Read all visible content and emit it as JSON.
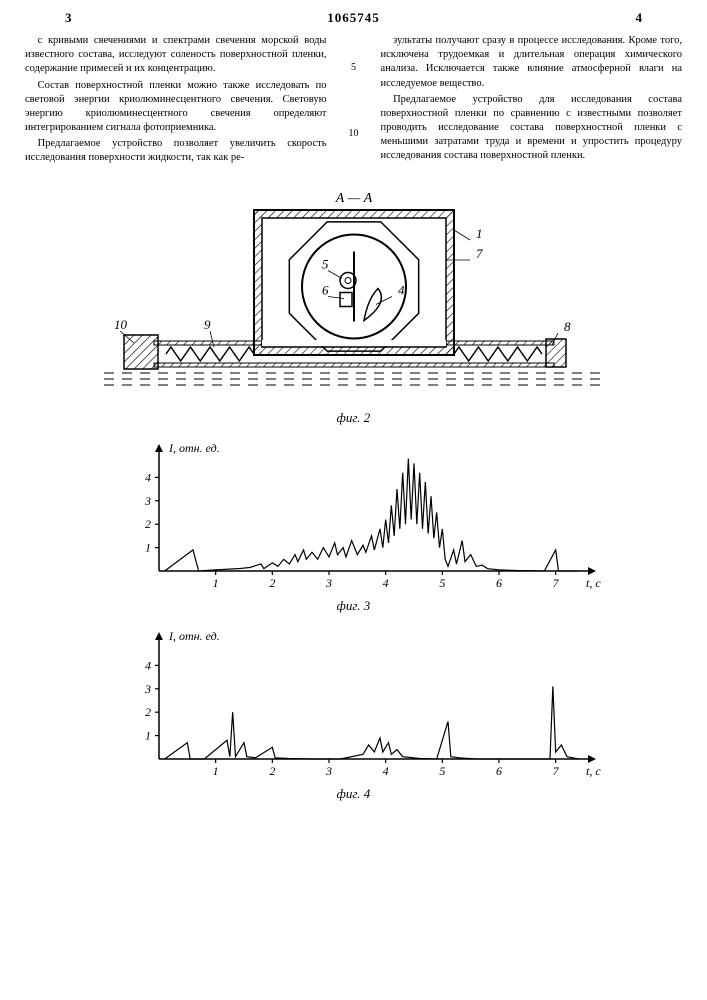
{
  "header": {
    "left_page": "3",
    "doc_number": "1065745",
    "right_page": "4"
  },
  "line_markers": {
    "a": "5",
    "b": "10"
  },
  "left_col": {
    "p1": "с кривыми свечениями и спектрами свечения морской воды известного состава, исследуют соленость поверхностной пленки, содержание примесей и их концентрацию.",
    "p2": "Состав поверхностной пленки можно также исследовать по световой энергии криолюминесцентного свечения. Световую энергию криолюминесцентного свечения определяют интегрированием сигнала фотоприемника.",
    "p3": "Предлагаемое устройство позволяет увеличить скорость исследования поверхности жидкости, так как ре-"
  },
  "right_col": {
    "p1": "зультаты получают сразу в процессе исследования. Кроме того, исключена трудоемкая и длительная операция химического анализа. Исключается также влияние атмосферной влаги на исследуемое вещество.",
    "p2": "Предлагаемое устройство для исследования состава поверхностной пленки по сравнению с известными позволяет проводить исследование состава поверхностной пленки с меньшими затратами труда и времени и упростить процедуру исследования состава поверхностной пленки."
  },
  "fig2": {
    "section_label": "А — А",
    "caption": "фиг. 2",
    "callouts": {
      "c1": "1",
      "c4": "4",
      "c5": "5",
      "c6": "6",
      "c7": "7",
      "c8": "8",
      "c9": "9",
      "c10": "10"
    },
    "colors": {
      "stroke": "#000000",
      "bg": "#ffffff",
      "hatch": "#000000"
    }
  },
  "fig3": {
    "caption": "фиг. 3",
    "ylabel": "I, отн. ед.",
    "xlabel": "t, c",
    "xlim": [
      0,
      7.5
    ],
    "ylim": [
      0,
      5
    ],
    "yticks": [
      1,
      2,
      3,
      4
    ],
    "xticks": [
      1,
      2,
      3,
      4,
      5,
      6,
      7
    ],
    "axis_color": "#000000",
    "line_color": "#000000",
    "points": [
      [
        0.1,
        0
      ],
      [
        0.6,
        0.9
      ],
      [
        0.7,
        0
      ],
      [
        1.0,
        0.05
      ],
      [
        1.4,
        0.1
      ],
      [
        1.6,
        0.15
      ],
      [
        1.8,
        0.3
      ],
      [
        1.85,
        0.1
      ],
      [
        2.0,
        0.35
      ],
      [
        2.1,
        0.2
      ],
      [
        2.2,
        0.5
      ],
      [
        2.3,
        0.3
      ],
      [
        2.4,
        0.7
      ],
      [
        2.45,
        0.4
      ],
      [
        2.55,
        0.9
      ],
      [
        2.6,
        0.5
      ],
      [
        2.7,
        0.8
      ],
      [
        2.8,
        0.5
      ],
      [
        2.9,
        1.0
      ],
      [
        3.0,
        0.6
      ],
      [
        3.1,
        1.2
      ],
      [
        3.15,
        0.7
      ],
      [
        3.25,
        1.0
      ],
      [
        3.3,
        0.6
      ],
      [
        3.4,
        1.3
      ],
      [
        3.5,
        0.7
      ],
      [
        3.6,
        1.1
      ],
      [
        3.65,
        0.8
      ],
      [
        3.75,
        1.5
      ],
      [
        3.8,
        0.9
      ],
      [
        3.9,
        1.8
      ],
      [
        3.95,
        1.0
      ],
      [
        4.0,
        2.2
      ],
      [
        4.05,
        1.2
      ],
      [
        4.1,
        2.8
      ],
      [
        4.15,
        1.5
      ],
      [
        4.2,
        3.5
      ],
      [
        4.25,
        1.8
      ],
      [
        4.3,
        4.2
      ],
      [
        4.35,
        2.0
      ],
      [
        4.4,
        4.8
      ],
      [
        4.45,
        2.2
      ],
      [
        4.5,
        4.6
      ],
      [
        4.55,
        2.0
      ],
      [
        4.6,
        4.2
      ],
      [
        4.65,
        1.8
      ],
      [
        4.7,
        3.8
      ],
      [
        4.75,
        1.6
      ],
      [
        4.8,
        3.2
      ],
      [
        4.85,
        1.4
      ],
      [
        4.9,
        2.5
      ],
      [
        4.95,
        1.0
      ],
      [
        5.0,
        1.8
      ],
      [
        5.05,
        0.5
      ],
      [
        5.1,
        0.2
      ],
      [
        5.2,
        0.9
      ],
      [
        5.25,
        0.3
      ],
      [
        5.35,
        1.3
      ],
      [
        5.4,
        0.4
      ],
      [
        5.5,
        0.7
      ],
      [
        5.6,
        0.2
      ],
      [
        5.7,
        0.25
      ],
      [
        5.8,
        0.1
      ],
      [
        6.0,
        0.05
      ],
      [
        6.3,
        0.02
      ],
      [
        6.6,
        0.01
      ],
      [
        6.8,
        0.0
      ],
      [
        7.0,
        0.9
      ],
      [
        7.05,
        0.0
      ],
      [
        7.4,
        0.0
      ]
    ]
  },
  "fig4": {
    "caption": "фиг. 4",
    "ylabel": "I, отн. ед.",
    "xlabel": "t, c",
    "xlim": [
      0,
      7.5
    ],
    "ylim": [
      0,
      5
    ],
    "yticks": [
      1,
      2,
      3,
      4
    ],
    "xticks": [
      1,
      2,
      3,
      4,
      5,
      6,
      7
    ],
    "axis_color": "#000000",
    "line_color": "#000000",
    "points": [
      [
        0.1,
        0
      ],
      [
        0.5,
        0.7
      ],
      [
        0.55,
        0
      ],
      [
        0.8,
        0
      ],
      [
        1.2,
        0.8
      ],
      [
        1.25,
        0.1
      ],
      [
        1.3,
        2.0
      ],
      [
        1.35,
        0.1
      ],
      [
        1.5,
        0.7
      ],
      [
        1.55,
        0.1
      ],
      [
        1.7,
        0.05
      ],
      [
        2.0,
        0.5
      ],
      [
        2.05,
        0.05
      ],
      [
        2.3,
        0.02
      ],
      [
        2.7,
        0.0
      ],
      [
        3.2,
        0.0
      ],
      [
        3.6,
        0.2
      ],
      [
        3.7,
        0.6
      ],
      [
        3.8,
        0.3
      ],
      [
        3.9,
        0.9
      ],
      [
        3.95,
        0.3
      ],
      [
        4.05,
        0.7
      ],
      [
        4.1,
        0.2
      ],
      [
        4.2,
        0.4
      ],
      [
        4.3,
        0.1
      ],
      [
        4.6,
        0.02
      ],
      [
        4.9,
        0.0
      ],
      [
        5.1,
        1.6
      ],
      [
        5.15,
        0.1
      ],
      [
        5.3,
        0.05
      ],
      [
        5.6,
        0.0
      ],
      [
        6.3,
        0.0
      ],
      [
        6.9,
        0.0
      ],
      [
        6.95,
        3.1
      ],
      [
        7.0,
        0.3
      ],
      [
        7.1,
        0.6
      ],
      [
        7.2,
        0.1
      ],
      [
        7.4,
        0.0
      ]
    ]
  }
}
